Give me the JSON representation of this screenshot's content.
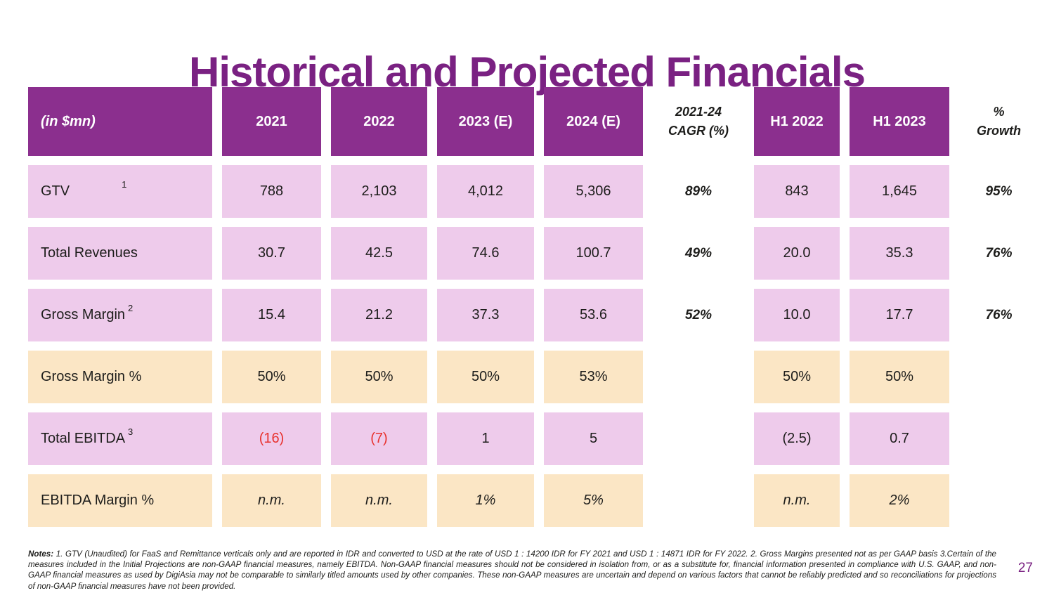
{
  "slide": {
    "title": "Historical and Projected Financials",
    "page_number": "27"
  },
  "table": {
    "unit_label": "(in $mn)",
    "header": {
      "years": [
        "2021",
        "2022",
        "2023 (E)",
        "2024 (E)"
      ],
      "cagr_line1": "2021-24",
      "cagr_line2": "CAGR (%)",
      "h1": [
        "H1 2022",
        "H1 2023"
      ],
      "growth_line1": "%",
      "growth_line2": "Growth"
    },
    "rows": [
      {
        "label": "GTV",
        "sup": "1",
        "values": [
          "788",
          "2,103",
          "4,012",
          "5,306"
        ],
        "cagr": "89%",
        "h1": [
          "843",
          "1,645"
        ],
        "growth": "95%"
      },
      {
        "label": "Total Revenues",
        "sup": "",
        "values": [
          "30.7",
          "42.5",
          "74.6",
          "100.7"
        ],
        "cagr": "49%",
        "h1": [
          "20.0",
          "35.3"
        ],
        "growth": "76%"
      },
      {
        "label": "Gross Margin",
        "sup": "2",
        "values": [
          "15.4",
          "21.2",
          "37.3",
          "53.6"
        ],
        "cagr": "52%",
        "h1": [
          "10.0",
          "17.7"
        ],
        "growth": "76%"
      },
      {
        "label": "Gross Margin %",
        "sup": "",
        "values": [
          "50%",
          "50%",
          "50%",
          "53%"
        ],
        "cagr": "",
        "h1": [
          "50%",
          "50%"
        ],
        "growth": ""
      },
      {
        "label": "Total EBITDA",
        "sup": "3",
        "values": [
          "(16)",
          "(7)",
          "1",
          "5"
        ],
        "cagr": "",
        "h1": [
          "(2.5)",
          "0.7"
        ],
        "growth": ""
      },
      {
        "label": "EBITDA Margin %",
        "sup": "",
        "values": [
          "n.m.",
          "n.m.",
          "1%",
          "5%"
        ],
        "cagr": "",
        "h1": [
          "n.m.",
          "2%"
        ],
        "growth": ""
      }
    ]
  },
  "notes": {
    "label": "Notes:",
    "text": "1. GTV (Unaudited) for FaaS and Remittance verticals only and are reported in IDR and converted to USD at the rate of USD 1 : 14200 IDR for FY 2021 and USD 1 : 14871 IDR for FY 2022. 2. Gross Margins presented not as per GAAP basis  3.Certain of the measures included in the Initial Projections are non-GAAP financial measures, namely EBITDA. Non-GAAP financial measures should not be considered in isolation from, or as a substitute for, financial information presented in compliance with U.S. GAAP, and non-GAAP financial measures as used by DigiAsia may not be comparable to similarly titled amounts used by other companies. These non-GAAP measures are uncertain and depend on various factors that cannot be reliably predicted and so reconciliations for projections of non-GAAP financial measures have not been provided."
  },
  "colors": {
    "header_purple": "#8B2F8E",
    "title_purple": "#7A2182",
    "pink_cell": "#EECBEB",
    "cream_cell": "#FBE6C5",
    "negative_red": "#E8322E",
    "text_dark": "#1D1D1B"
  }
}
